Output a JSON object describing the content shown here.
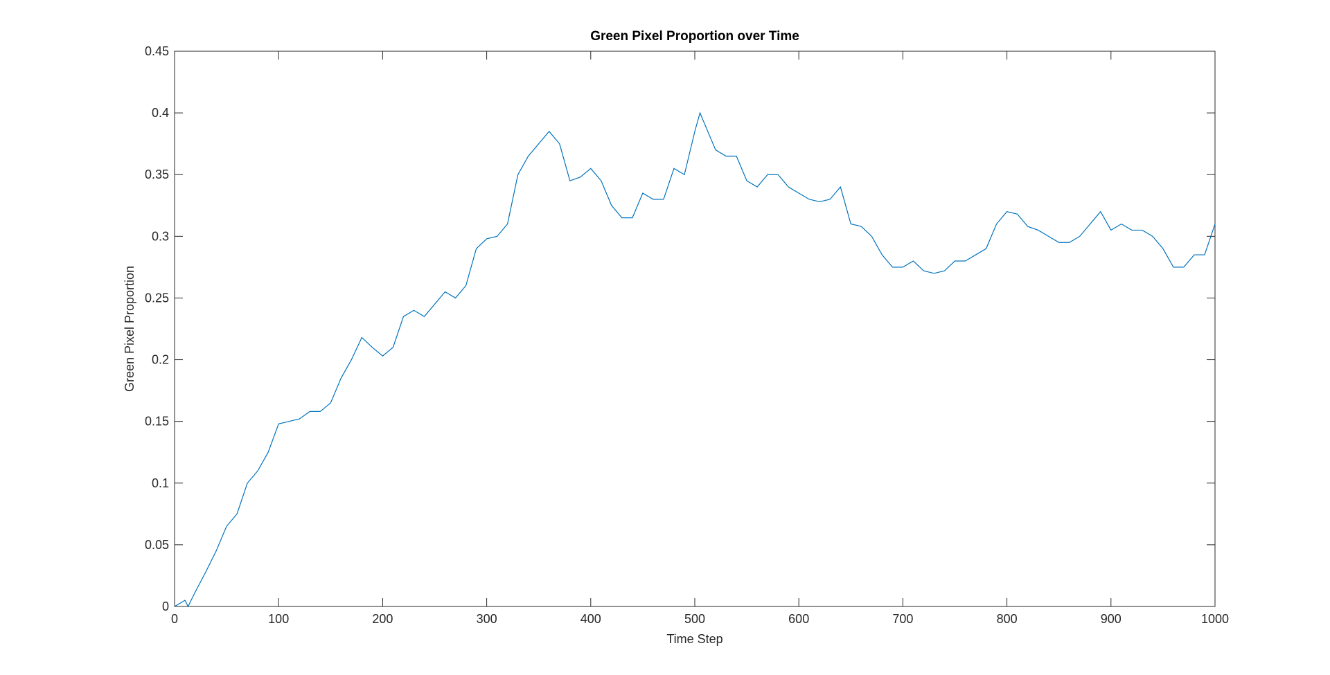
{
  "chart_data": {
    "type": "line",
    "title": "Green Pixel Proportion over Time",
    "x_label": "Time Step",
    "y_label": "Green Pixel Proportion",
    "x": [
      0,
      10,
      13,
      20,
      30,
      40,
      50,
      60,
      70,
      80,
      90,
      100,
      110,
      120,
      130,
      140,
      150,
      160,
      170,
      180,
      190,
      200,
      210,
      220,
      230,
      240,
      250,
      260,
      270,
      280,
      290,
      300,
      310,
      320,
      330,
      340,
      350,
      360,
      370,
      380,
      390,
      400,
      410,
      420,
      430,
      440,
      450,
      460,
      470,
      480,
      490,
      500,
      505,
      510,
      520,
      530,
      540,
      550,
      560,
      570,
      580,
      590,
      600,
      610,
      620,
      630,
      640,
      650,
      660,
      670,
      680,
      690,
      700,
      710,
      720,
      730,
      740,
      750,
      760,
      770,
      780,
      790,
      800,
      810,
      820,
      830,
      840,
      850,
      860,
      870,
      880,
      890,
      900,
      910,
      920,
      930,
      940,
      950,
      960,
      970,
      980,
      990,
      1000
    ],
    "series": [
      {
        "name": "Green Pixel Proportion",
        "color": "#0072bd",
        "values": [
          0,
          0.005,
          0,
          0.012,
          0.028,
          0.045,
          0.065,
          0.075,
          0.1,
          0.11,
          0.125,
          0.148,
          0.15,
          0.152,
          0.158,
          0.158,
          0.165,
          0.185,
          0.2,
          0.218,
          0.21,
          0.203,
          0.21,
          0.235,
          0.24,
          0.235,
          0.245,
          0.255,
          0.25,
          0.26,
          0.29,
          0.298,
          0.3,
          0.31,
          0.35,
          0.365,
          0.375,
          0.385,
          0.375,
          0.345,
          0.348,
          0.355,
          0.345,
          0.325,
          0.315,
          0.315,
          0.335,
          0.33,
          0.33,
          0.355,
          0.35,
          0.385,
          0.4,
          0.39,
          0.37,
          0.365,
          0.365,
          0.345,
          0.34,
          0.35,
          0.35,
          0.34,
          0.335,
          0.33,
          0.328,
          0.33,
          0.34,
          0.31,
          0.308,
          0.3,
          0.285,
          0.275,
          0.275,
          0.28,
          0.272,
          0.27,
          0.272,
          0.28,
          0.28,
          0.285,
          0.29,
          0.31,
          0.32,
          0.318,
          0.308,
          0.305,
          0.3,
          0.295,
          0.295,
          0.3,
          0.31,
          0.32,
          0.305,
          0.31,
          0.305,
          0.305,
          0.3,
          0.29,
          0.275,
          0.275,
          0.285,
          0.285,
          0.31
        ]
      }
    ],
    "xlim": [
      0,
      1000
    ],
    "ylim": [
      0,
      0.45
    ],
    "xticks": [
      0,
      100,
      200,
      300,
      400,
      500,
      600,
      700,
      800,
      900,
      1000
    ],
    "yticks": [
      0,
      0.05,
      0.1,
      0.15,
      0.2,
      0.25,
      0.3,
      0.35,
      0.4,
      0.45
    ],
    "grid": false
  }
}
